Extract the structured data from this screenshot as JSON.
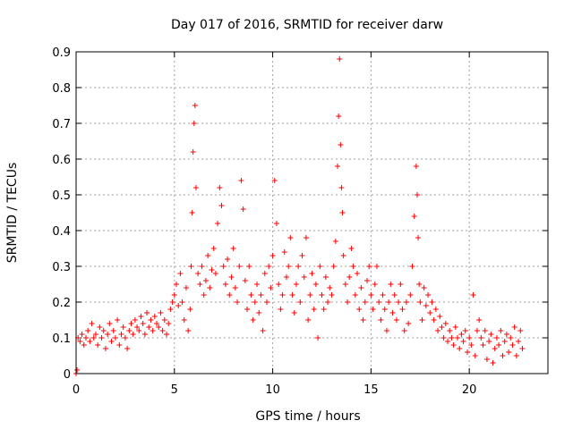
{
  "chart_data": {
    "type": "scatter",
    "title": "Day 017 of 2016, SRMTID for receiver darw",
    "xlabel": "GPS time / hours",
    "ylabel": "SRMTID / TECUs",
    "xlim": [
      0,
      24
    ],
    "ylim": [
      0,
      0.9
    ],
    "xticks": [
      0,
      5,
      10,
      15,
      20
    ],
    "xtick_labels": [
      "0",
      "5",
      "10",
      "15",
      "20"
    ],
    "yticks": [
      0,
      0.1,
      0.2,
      0.3,
      0.4,
      0.5,
      0.6,
      0.7,
      0.8,
      0.9
    ],
    "ytick_labels": [
      "0",
      "0.1",
      "0.2",
      "0.3",
      "0.4",
      "0.5",
      "0.6",
      "0.7",
      "0.8",
      "0.9"
    ],
    "grid": true,
    "marker": "+",
    "marker_color": "#ff0000",
    "series": [
      {
        "name": "SRMTID",
        "x": [
          0.0,
          0.05,
          0.1,
          0.2,
          0.3,
          0.4,
          0.5,
          0.6,
          0.7,
          0.8,
          0.9,
          1.0,
          1.1,
          1.2,
          1.3,
          1.4,
          1.5,
          1.6,
          1.7,
          1.8,
          1.9,
          2.0,
          2.1,
          2.2,
          2.3,
          2.4,
          2.5,
          2.6,
          2.7,
          2.8,
          2.9,
          3.0,
          3.1,
          3.2,
          3.3,
          3.4,
          3.5,
          3.6,
          3.7,
          3.8,
          3.9,
          4.0,
          4.1,
          4.2,
          4.3,
          4.4,
          4.5,
          4.6,
          4.7,
          4.8,
          4.9,
          5.0,
          5.1,
          5.2,
          5.3,
          5.4,
          5.5,
          5.6,
          5.7,
          5.8,
          5.85,
          5.9,
          5.95,
          6.0,
          6.05,
          6.1,
          6.2,
          6.3,
          6.4,
          6.5,
          6.6,
          6.7,
          6.8,
          6.9,
          7.0,
          7.1,
          7.2,
          7.3,
          7.4,
          7.5,
          7.6,
          7.7,
          7.8,
          7.9,
          8.0,
          8.1,
          8.2,
          8.3,
          8.4,
          8.5,
          8.6,
          8.7,
          8.8,
          8.9,
          9.0,
          9.1,
          9.2,
          9.3,
          9.4,
          9.5,
          9.6,
          9.7,
          9.8,
          9.9,
          10.0,
          10.1,
          10.2,
          10.3,
          10.4,
          10.5,
          10.6,
          10.7,
          10.8,
          10.9,
          11.0,
          11.1,
          11.2,
          11.3,
          11.4,
          11.5,
          11.6,
          11.7,
          11.8,
          11.9,
          12.0,
          12.1,
          12.2,
          12.3,
          12.4,
          12.5,
          12.6,
          12.7,
          12.8,
          12.9,
          13.0,
          13.1,
          13.2,
          13.3,
          13.35,
          13.4,
          13.45,
          13.5,
          13.55,
          13.6,
          13.7,
          13.8,
          13.9,
          14.0,
          14.1,
          14.2,
          14.3,
          14.4,
          14.5,
          14.6,
          14.7,
          14.8,
          14.9,
          15.0,
          15.1,
          15.2,
          15.3,
          15.4,
          15.5,
          15.6,
          15.7,
          15.8,
          15.9,
          16.0,
          16.1,
          16.2,
          16.3,
          16.4,
          16.5,
          16.6,
          16.7,
          16.8,
          16.9,
          17.0,
          17.1,
          17.2,
          17.3,
          17.35,
          17.4,
          17.45,
          17.5,
          17.6,
          17.7,
          17.8,
          17.9,
          18.0,
          18.1,
          18.2,
          18.3,
          18.4,
          18.5,
          18.6,
          18.7,
          18.8,
          18.9,
          19.0,
          19.1,
          19.2,
          19.3,
          19.4,
          19.5,
          19.6,
          19.7,
          19.8,
          19.9,
          20.0,
          20.1,
          20.2,
          20.3,
          20.4,
          20.5,
          20.6,
          20.7,
          20.8,
          20.9,
          21.0,
          21.1,
          21.2,
          21.3,
          21.4,
          21.5,
          21.6,
          21.7,
          21.8,
          21.9,
          22.0,
          22.1,
          22.2,
          22.3,
          22.4,
          22.5,
          22.6,
          22.7
        ],
        "y": [
          0.0,
          0.01,
          0.1,
          0.09,
          0.11,
          0.08,
          0.1,
          0.12,
          0.09,
          0.14,
          0.1,
          0.11,
          0.08,
          0.13,
          0.1,
          0.12,
          0.07,
          0.11,
          0.14,
          0.09,
          0.12,
          0.1,
          0.15,
          0.08,
          0.11,
          0.13,
          0.1,
          0.07,
          0.12,
          0.14,
          0.11,
          0.15,
          0.13,
          0.12,
          0.16,
          0.14,
          0.11,
          0.17,
          0.13,
          0.15,
          0.12,
          0.16,
          0.14,
          0.13,
          0.17,
          0.12,
          0.15,
          0.11,
          0.14,
          0.18,
          0.2,
          0.22,
          0.25,
          0.19,
          0.28,
          0.2,
          0.15,
          0.24,
          0.12,
          0.18,
          0.3,
          0.45,
          0.62,
          0.7,
          0.75,
          0.52,
          0.28,
          0.25,
          0.3,
          0.22,
          0.26,
          0.33,
          0.24,
          0.29,
          0.35,
          0.28,
          0.42,
          0.52,
          0.47,
          0.3,
          0.25,
          0.32,
          0.22,
          0.27,
          0.35,
          0.24,
          0.2,
          0.3,
          0.54,
          0.46,
          0.26,
          0.18,
          0.3,
          0.22,
          0.15,
          0.2,
          0.25,
          0.17,
          0.22,
          0.12,
          0.28,
          0.2,
          0.3,
          0.24,
          0.33,
          0.54,
          0.42,
          0.25,
          0.18,
          0.22,
          0.34,
          0.27,
          0.3,
          0.38,
          0.22,
          0.17,
          0.25,
          0.3,
          0.2,
          0.33,
          0.27,
          0.38,
          0.15,
          0.22,
          0.28,
          0.18,
          0.25,
          0.1,
          0.3,
          0.22,
          0.18,
          0.27,
          0.2,
          0.24,
          0.22,
          0.3,
          0.37,
          0.58,
          0.72,
          0.88,
          0.64,
          0.52,
          0.45,
          0.33,
          0.25,
          0.2,
          0.27,
          0.35,
          0.3,
          0.22,
          0.28,
          0.18,
          0.24,
          0.15,
          0.2,
          0.26,
          0.3,
          0.22,
          0.18,
          0.25,
          0.3,
          0.2,
          0.15,
          0.22,
          0.18,
          0.12,
          0.2,
          0.25,
          0.17,
          0.22,
          0.15,
          0.2,
          0.25,
          0.18,
          0.12,
          0.2,
          0.14,
          0.22,
          0.3,
          0.44,
          0.58,
          0.5,
          0.38,
          0.25,
          0.2,
          0.15,
          0.24,
          0.19,
          0.22,
          0.17,
          0.2,
          0.15,
          0.18,
          0.12,
          0.16,
          0.13,
          0.1,
          0.14,
          0.09,
          0.12,
          0.1,
          0.08,
          0.13,
          0.1,
          0.07,
          0.11,
          0.09,
          0.12,
          0.06,
          0.1,
          0.08,
          0.22,
          0.05,
          0.12,
          0.15,
          0.1,
          0.08,
          0.12,
          0.04,
          0.09,
          0.11,
          0.03,
          0.07,
          0.1,
          0.08,
          0.12,
          0.05,
          0.09,
          0.11,
          0.06,
          0.1,
          0.08,
          0.13,
          0.05,
          0.09,
          0.12,
          0.07
        ]
      }
    ]
  }
}
